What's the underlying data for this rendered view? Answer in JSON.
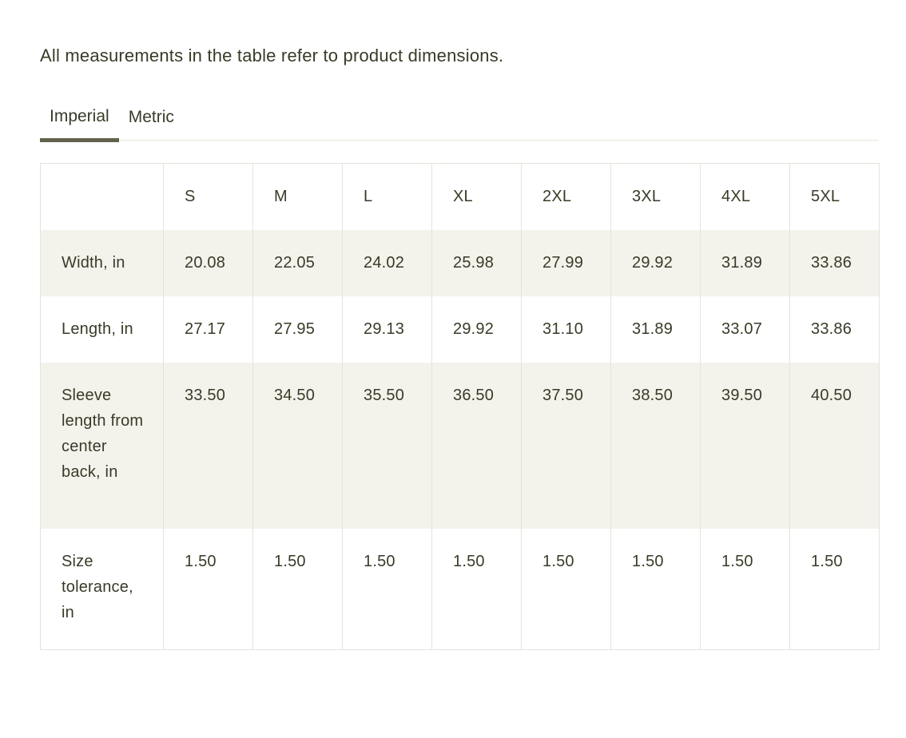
{
  "note": "All measurements in the table refer to product dimensions.",
  "tabs": [
    {
      "label": "Imperial",
      "active": true
    },
    {
      "label": "Metric",
      "active": false
    }
  ],
  "colors": {
    "text": "#3a3a28",
    "active_tab_underline": "#62624a",
    "tabs_divider": "#e7e7de",
    "table_border": "#e4e4dc",
    "shaded_row_background": "#f3f3ec",
    "page_background": "#ffffff"
  },
  "table": {
    "columns": [
      "",
      "S",
      "M",
      "L",
      "XL",
      "2XL",
      "3XL",
      "4XL",
      "5XL"
    ],
    "rows": [
      {
        "label": "Width, in",
        "values": [
          "20.08",
          "22.05",
          "24.02",
          "25.98",
          "27.99",
          "29.92",
          "31.89",
          "33.86"
        ],
        "shaded": true
      },
      {
        "label": "Length, in",
        "values": [
          "27.17",
          "27.95",
          "29.13",
          "29.92",
          "31.10",
          "31.89",
          "33.07",
          "33.86"
        ],
        "shaded": false
      },
      {
        "label": "Sleeve length from center back, in",
        "values": [
          "33.50",
          "34.50",
          "35.50",
          "36.50",
          "37.50",
          "38.50",
          "39.50",
          "40.50"
        ],
        "shaded": true
      },
      {
        "label": "Size tolerance, in",
        "values": [
          "1.50",
          "1.50",
          "1.50",
          "1.50",
          "1.50",
          "1.50",
          "1.50",
          "1.50"
        ],
        "shaded": false
      }
    ]
  }
}
